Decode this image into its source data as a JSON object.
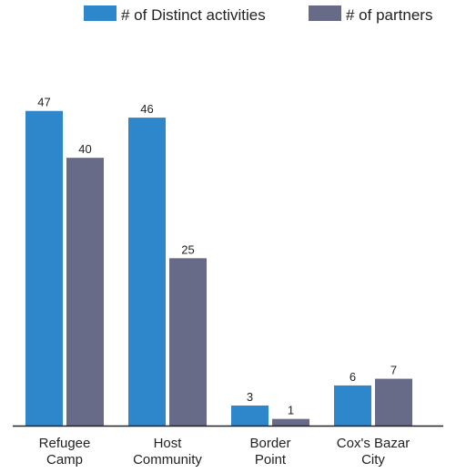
{
  "chart_data": {
    "type": "bar",
    "categories": [
      [
        "Refugee",
        "Camp"
      ],
      [
        "Host",
        "Community"
      ],
      [
        "Border",
        "Point"
      ],
      [
        "Cox's Bazar",
        "City"
      ]
    ],
    "series": [
      {
        "name": "# of Distinct activities",
        "color": "#2E86CB",
        "values": [
          47,
          46,
          3,
          6
        ]
      },
      {
        "name": "# of partners",
        "color": "#676B88",
        "values": [
          40,
          25,
          1,
          7
        ]
      }
    ],
    "ylim": [
      0,
      52
    ],
    "grid": false,
    "legend_position": "top"
  }
}
